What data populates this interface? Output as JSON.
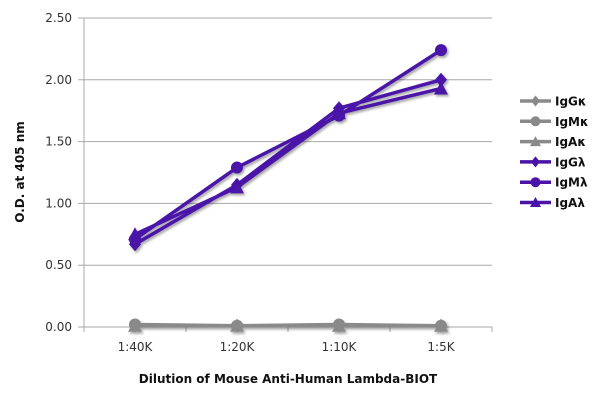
{
  "chart_data": {
    "type": "line",
    "title": "",
    "xlabel": "Dilution of Mouse Anti-Human Lambda-BIOT",
    "ylabel": "O.D. at 405 nm",
    "categories": [
      "1:40K",
      "1:20K",
      "1:10K",
      "1:5K"
    ],
    "ylim": [
      0,
      2.5
    ],
    "yticks": [
      "0.00",
      "0.50",
      "1.00",
      "1.50",
      "2.00",
      "2.50"
    ],
    "grid": "horizontal",
    "legend_position": "right",
    "series": [
      {
        "name": "IgGκ",
        "marker": "diamond",
        "color": "#8a8a8a",
        "values": [
          0.01,
          0.01,
          0.01,
          0.01
        ]
      },
      {
        "name": "IgMκ",
        "marker": "circle",
        "color": "#8a8a8a",
        "values": [
          0.02,
          0.01,
          0.02,
          0.01
        ]
      },
      {
        "name": "IgAκ",
        "marker": "triangle",
        "color": "#8a8a8a",
        "values": [
          0.01,
          0.01,
          0.01,
          0.01
        ]
      },
      {
        "name": "IgGλ",
        "marker": "diamond",
        "color": "#4a12a8",
        "values": [
          0.67,
          1.15,
          1.77,
          2.0
        ]
      },
      {
        "name": "IgMλ",
        "marker": "circle",
        "color": "#4a12a8",
        "values": [
          0.71,
          1.29,
          1.71,
          2.24
        ]
      },
      {
        "name": "IgAλ",
        "marker": "triangle",
        "color": "#4a12a8",
        "values": [
          0.75,
          1.13,
          1.73,
          1.93
        ]
      }
    ]
  }
}
